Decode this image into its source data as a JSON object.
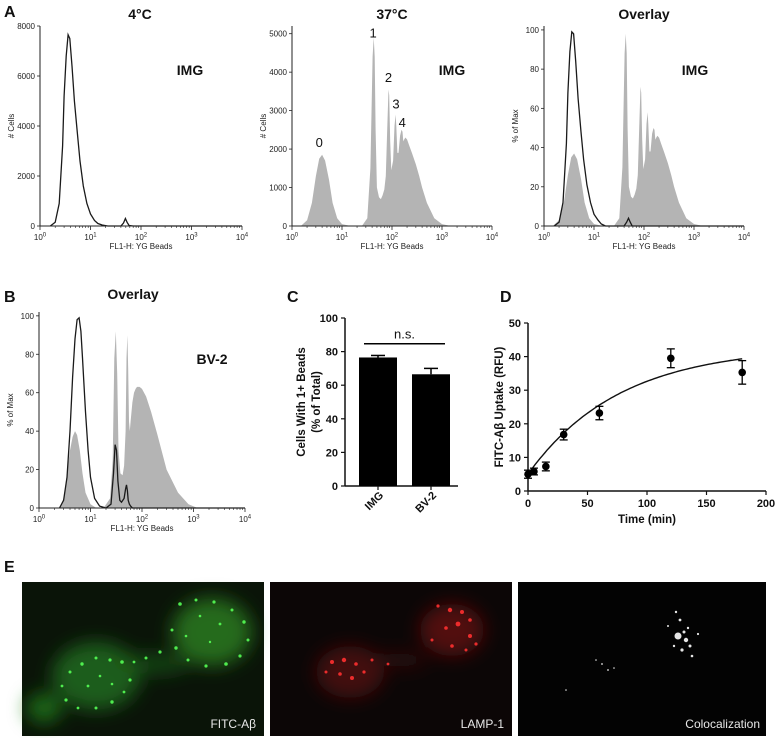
{
  "panel_labels": {
    "A": "A",
    "B": "B",
    "C": "C",
    "D": "D",
    "E": "E"
  },
  "chart_data": [
    {
      "id": "A1",
      "type": "area",
      "title": "4°C",
      "tag": "IMG",
      "xlabel": "FL1-H: YG Beads",
      "ylabel": "# Cells",
      "xscale": "log",
      "xlim": [
        1,
        10000
      ],
      "ylim": [
        0,
        8000
      ],
      "xticks": [
        "10^0",
        "10^1",
        "10^2",
        "10^3",
        "10^4"
      ],
      "yticks": [
        0,
        2000,
        4000,
        6000,
        8000
      ],
      "series": [
        {
          "style": "line",
          "color": "#1a1a1a",
          "x": [
            1.6,
            2.0,
            2.4,
            2.8,
            3.0,
            3.3,
            3.6,
            3.9,
            4.3,
            4.8,
            5.5,
            6.2,
            7.2,
            8.5,
            10,
            12,
            14,
            17,
            22,
            40,
            45,
            49,
            53,
            58,
            70,
            10000
          ],
          "y": [
            0,
            150,
            900,
            3200,
            5200,
            6800,
            7650,
            7500,
            6400,
            5000,
            3700,
            2600,
            1600,
            900,
            480,
            220,
            100,
            40,
            0,
            0,
            120,
            300,
            150,
            20,
            0,
            0
          ]
        }
      ]
    },
    {
      "id": "A2",
      "type": "area",
      "title": "37°C",
      "tag": "IMG",
      "xlabel": "FL1-H: YG Beads",
      "ylabel": "# Cells",
      "xscale": "log",
      "xlim": [
        1,
        10000
      ],
      "ylim": [
        0,
        5200
      ],
      "xticks": [
        "10^0",
        "10^1",
        "10^2",
        "10^3",
        "10^4"
      ],
      "yticks": [
        0,
        1000,
        2000,
        3000,
        4000,
        5000
      ],
      "peak_labels": [
        {
          "text": "0",
          "x": 3.5,
          "y": 2050
        },
        {
          "text": "1",
          "x": 42,
          "y": 4900
        },
        {
          "text": "2",
          "x": 85,
          "y": 3750
        },
        {
          "text": "3",
          "x": 120,
          "y": 3050
        },
        {
          "text": "4",
          "x": 160,
          "y": 2580
        }
      ],
      "series": [
        {
          "style": "fill",
          "color": "#b4b4b4",
          "x": [
            1.5,
            2.0,
            2.5,
            3.0,
            3.5,
            4.0,
            4.6,
            5.5,
            6.5,
            8,
            10,
            15,
            25,
            32,
            37,
            41,
            43,
            45,
            47,
            50,
            55,
            60,
            65,
            70,
            75,
            80,
            85,
            88,
            92,
            97,
            105,
            112,
            118,
            122,
            128,
            135,
            145,
            155,
            162,
            168,
            175,
            185,
            200,
            220,
            250,
            300,
            350,
            400,
            500,
            700,
            1000,
            1500,
            10000
          ],
          "y": [
            0,
            150,
            600,
            1300,
            1750,
            1850,
            1700,
            1200,
            600,
            200,
            50,
            0,
            0,
            200,
            1500,
            4400,
            4900,
            4400,
            2500,
            1000,
            750,
            700,
            800,
            950,
            1300,
            2500,
            3550,
            3400,
            2200,
            1450,
            1700,
            2600,
            2900,
            2600,
            1900,
            1900,
            2350,
            2500,
            2450,
            2200,
            2250,
            2300,
            2250,
            2100,
            1900,
            1600,
            1300,
            1000,
            600,
            200,
            50,
            0,
            0
          ]
        }
      ]
    },
    {
      "id": "A3",
      "type": "area",
      "title": "Overlay",
      "tag": "IMG",
      "xlabel": "FL1-H: YG Beads",
      "ylabel": "% of Max",
      "xscale": "log",
      "xlim": [
        1,
        10000
      ],
      "ylim": [
        0,
        102
      ],
      "xticks": [
        "10^0",
        "10^1",
        "10^2",
        "10^3",
        "10^4"
      ],
      "yticks": [
        0,
        20,
        40,
        60,
        80,
        100
      ],
      "series": [
        {
          "style": "fill",
          "color": "#b4b4b4",
          "x": [
            1.5,
            2.0,
            2.5,
            3.0,
            3.5,
            4.0,
            4.6,
            5.5,
            6.5,
            8,
            10,
            15,
            25,
            32,
            37,
            41,
            43,
            45,
            47,
            50,
            55,
            60,
            65,
            70,
            75,
            80,
            85,
            88,
            92,
            97,
            105,
            112,
            118,
            122,
            128,
            135,
            145,
            155,
            162,
            168,
            175,
            185,
            200,
            220,
            250,
            300,
            350,
            400,
            500,
            700,
            1000,
            1500,
            10000
          ],
          "y": [
            0,
            3,
            12,
            26,
            35,
            37,
            34,
            24,
            12,
            4,
            1,
            0,
            0,
            4,
            30,
            88,
            98,
            88,
            50,
            20,
            15,
            14,
            16,
            19,
            26,
            50,
            71,
            68,
            44,
            29,
            34,
            52,
            58,
            52,
            38,
            38,
            47,
            50,
            49,
            44,
            45,
            46,
            45,
            42,
            38,
            32,
            26,
            20,
            12,
            4,
            1,
            0,
            0
          ]
        },
        {
          "style": "line",
          "color": "#1a1a1a",
          "x": [
            1.6,
            2.0,
            2.4,
            2.8,
            3.0,
            3.3,
            3.6,
            3.9,
            4.3,
            4.8,
            5.5,
            6.2,
            7.2,
            8.5,
            10,
            12,
            14,
            17,
            22,
            40,
            45,
            49,
            53,
            58,
            70,
            10000
          ],
          "y": [
            0,
            2,
            12,
            42,
            68,
            89,
            99,
            98,
            84,
            65,
            48,
            34,
            21,
            12,
            6,
            3,
            1,
            0,
            0,
            0,
            2,
            4,
            2,
            0,
            0,
            0
          ]
        }
      ]
    },
    {
      "id": "B",
      "type": "area",
      "title": "Overlay",
      "tag": "BV-2",
      "xlabel": "FL1-H: YG Beads",
      "ylabel": "% of Max",
      "xscale": "log",
      "xlim": [
        1,
        10000
      ],
      "ylim": [
        0,
        102
      ],
      "xticks": [
        "10^0",
        "10^1",
        "10^2",
        "10^3",
        "10^4"
      ],
      "yticks": [
        0,
        20,
        40,
        60,
        80,
        100
      ],
      "series": [
        {
          "style": "fill",
          "color": "#b4b4b4",
          "x": [
            2.5,
            3.0,
            3.5,
            4.0,
            4.5,
            5.0,
            5.5,
            6.2,
            7,
            8,
            10,
            13,
            18,
            24,
            27,
            29,
            31,
            33,
            35,
            38,
            42,
            45,
            48,
            50,
            52,
            54,
            56,
            58,
            60,
            65,
            70,
            75,
            80,
            90,
            100,
            120,
            150,
            200,
            300,
            500,
            800,
            1200,
            10000
          ],
          "y": [
            0,
            5,
            18,
            30,
            37,
            40,
            38,
            30,
            18,
            8,
            2,
            0,
            0,
            5,
            25,
            78,
            92,
            70,
            30,
            18,
            17,
            22,
            40,
            78,
            90,
            72,
            45,
            40,
            45,
            55,
            60,
            62,
            63,
            63,
            62,
            58,
            50,
            38,
            20,
            8,
            2,
            0,
            0
          ]
        },
        {
          "style": "line",
          "color": "#1a1a1a",
          "x": [
            2.5,
            3.0,
            3.5,
            4.0,
            4.5,
            5.0,
            5.5,
            6.0,
            6.5,
            7.0,
            8.0,
            9.0,
            10,
            12,
            15,
            20,
            25,
            28,
            30,
            32,
            34,
            37,
            40,
            45,
            48,
            50,
            52,
            54,
            57,
            60,
            65,
            75,
            10000
          ],
          "y": [
            0,
            4,
            16,
            40,
            68,
            88,
            98,
            99,
            92,
            78,
            50,
            30,
            16,
            5,
            1,
            0,
            2,
            18,
            33,
            30,
            14,
            4,
            3,
            5,
            10,
            12,
            9,
            4,
            2,
            1,
            0,
            0,
            0
          ]
        }
      ]
    },
    {
      "id": "C",
      "type": "bar",
      "categories": [
        "IMG",
        "BV-2"
      ],
      "values": [
        76.5,
        66.5
      ],
      "errors": [
        1.2,
        3.5
      ],
      "ylabel_lines": [
        "Cells With 1+ Beads",
        "(% of Total)"
      ],
      "ylim": [
        0,
        100
      ],
      "yticks": [
        0,
        20,
        40,
        60,
        80,
        100
      ],
      "annotation": "n.s.",
      "bar_color": "#000000"
    },
    {
      "id": "D",
      "type": "scatter",
      "x": [
        0,
        5,
        15,
        30,
        60,
        120,
        180
      ],
      "y": [
        5,
        5.8,
        7.3,
        16.8,
        23.2,
        39.5,
        35.3
      ],
      "errors": [
        1.2,
        1.0,
        1.3,
        1.6,
        2.0,
        2.8,
        3.5
      ],
      "fit": {
        "model": "one-phase association",
        "ymax": 43,
        "k": 0.013
      },
      "xlabel": "Time (min)",
      "ylabel": "FITC-Aβ Uptake (RFU)",
      "xlim": [
        0,
        200
      ],
      "ylim": [
        0,
        50
      ],
      "xticks": [
        0,
        50,
        100,
        150,
        200
      ],
      "yticks": [
        0,
        10,
        20,
        30,
        40,
        50
      ]
    }
  ],
  "micrographs": [
    {
      "caption": "FITC-Aβ",
      "channel": "green",
      "color": "#33ff33"
    },
    {
      "caption": "LAMP-1",
      "channel": "red",
      "color": "#ff2222"
    },
    {
      "caption": "Colocalization",
      "channel": "white",
      "color": "#ffffff"
    }
  ]
}
